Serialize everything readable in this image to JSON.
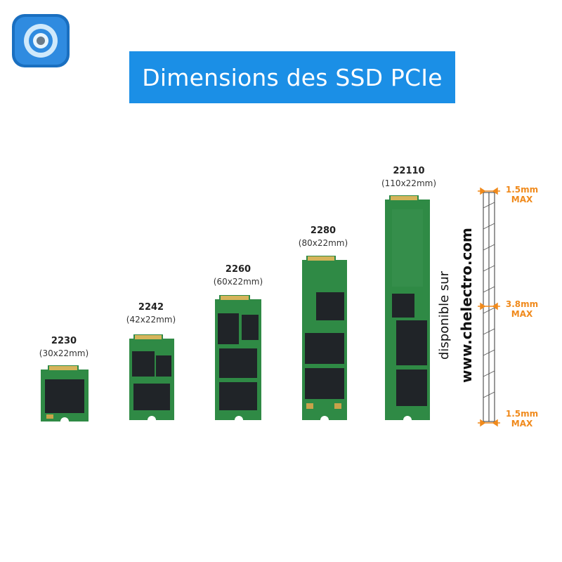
{
  "title": "Dimensions des SSD PCIe",
  "ssds": [
    {
      "code": "2230",
      "dims": "(30x22mm)"
    },
    {
      "code": "2242",
      "dims": "(42x22mm)"
    },
    {
      "code": "2260",
      "dims": "(60x22mm)"
    },
    {
      "code": "2280",
      "dims": "(80x22mm)"
    },
    {
      "code": "22110",
      "dims": "(110x22mm)"
    }
  ],
  "thickness": {
    "top_value": "1.5mm",
    "top_max": "MAX",
    "middle_value": "3.8mm",
    "middle_max": "MAX",
    "bottom_value": "1.5mm",
    "bottom_max": "MAX"
  },
  "availability": {
    "line1": "disponible sur",
    "line2": "www.chelectro.com"
  },
  "colors": {
    "title_bg": "#1b8fe6",
    "pcb_green": "#2f8a45",
    "accent_orange": "#f08a1c",
    "logo_blue": "#1a6fc0"
  },
  "icons": [
    "app-logo-icon"
  ]
}
